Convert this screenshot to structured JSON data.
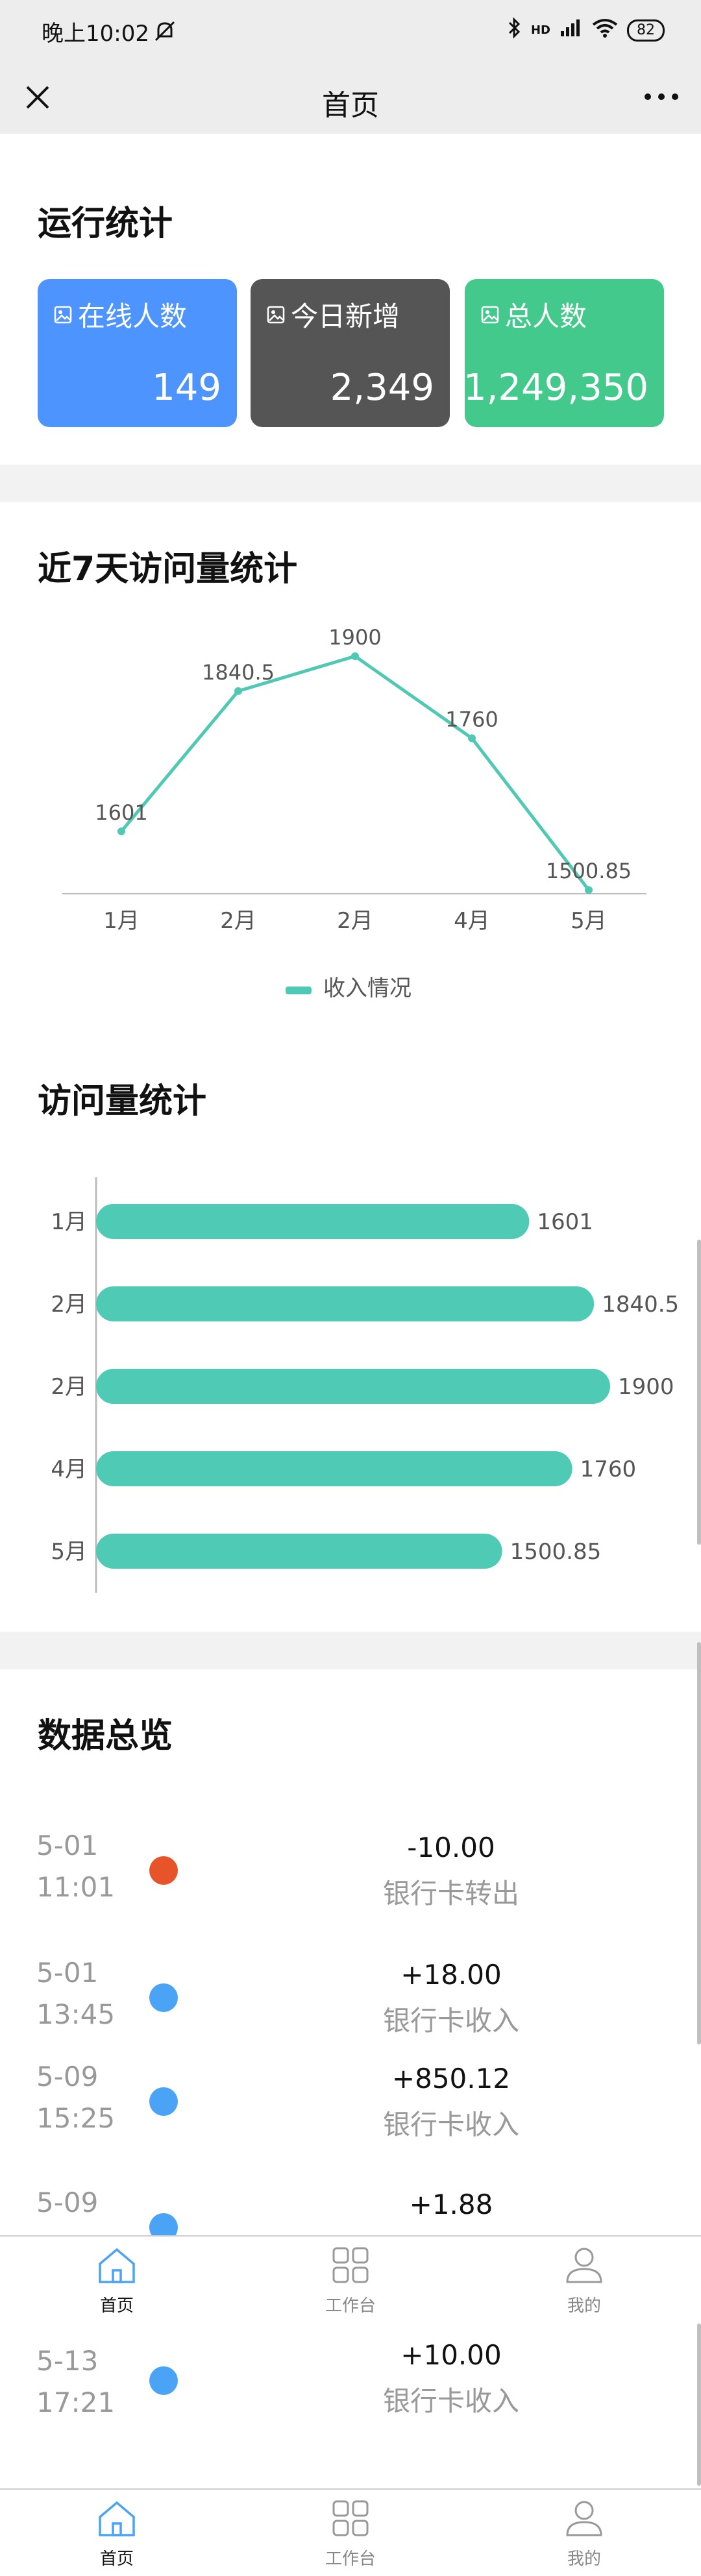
{
  "status_bar": {
    "time": "晚上10:02",
    "battery": "82",
    "network": "HD"
  },
  "nav": {
    "title": "首页"
  },
  "stats": {
    "title": "运行统计",
    "cards": [
      {
        "label": "在线人数",
        "value": "149",
        "color": "#4d94ff"
      },
      {
        "label": "今日新增",
        "value": "2,349",
        "color": "#555555"
      },
      {
        "label": "总人数",
        "value": "1,249,350",
        "color": "#42c98b"
      }
    ]
  },
  "line_section": {
    "title": "近7天访问量统计",
    "legend": "收入情况"
  },
  "bar_section": {
    "title": "访问量统计"
  },
  "chart_data": [
    {
      "type": "line",
      "categories": [
        "1月",
        "2月",
        "2月",
        "4月",
        "5月"
      ],
      "values": [
        1601,
        1840.5,
        1900,
        1760,
        1500.85
      ],
      "data_labels": [
        "1601",
        "1840.5",
        "1900",
        "1760",
        "1500.85"
      ],
      "series": [
        {
          "name": "收入情况",
          "values": [
            1601,
            1840.5,
            1900,
            1760,
            1500.85
          ]
        }
      ],
      "ylim": [
        1500,
        1930
      ],
      "color": "#4fc9b4",
      "legend": "bottom-center",
      "grid": false
    },
    {
      "type": "bar",
      "orientation": "horizontal",
      "categories": [
        "1月",
        "2月",
        "2月",
        "4月",
        "5月"
      ],
      "values": [
        1601,
        1840.5,
        1900,
        1760,
        1500.85
      ],
      "data_labels": [
        "1601",
        "1840.5",
        "1900",
        "1760",
        "1500.85"
      ],
      "xlim": [
        0,
        1900
      ],
      "color": "#4fcbb5",
      "grid": false
    }
  ],
  "overview": {
    "title": "数据总览",
    "entries": [
      {
        "date": "5-01",
        "time": "11:01",
        "amount": "-10.00",
        "desc": "银行卡转出",
        "dot_color": "#e8542a"
      },
      {
        "date": "5-01",
        "time": "13:45",
        "amount": "+18.00",
        "desc": "银行卡收入",
        "dot_color": "#4ba3f5"
      },
      {
        "date": "5-09",
        "time": "15:25",
        "amount": "+850.12",
        "desc": "银行卡收入",
        "dot_color": "#4ba3f5"
      },
      {
        "date": "5-09",
        "time": "",
        "amount": "+1.88",
        "desc": "",
        "dot_color": "#4ba3f5"
      },
      {
        "date": "5-13",
        "time": "17:21",
        "amount": "+10.00",
        "desc": "银行卡收入",
        "dot_color": "#4ba3f5"
      }
    ]
  },
  "tabbar": {
    "tabs": [
      {
        "label": "首页",
        "icon": "home-icon"
      },
      {
        "label": "工作台",
        "icon": "grid-icon"
      },
      {
        "label": "我的",
        "icon": "user-icon"
      }
    ]
  }
}
